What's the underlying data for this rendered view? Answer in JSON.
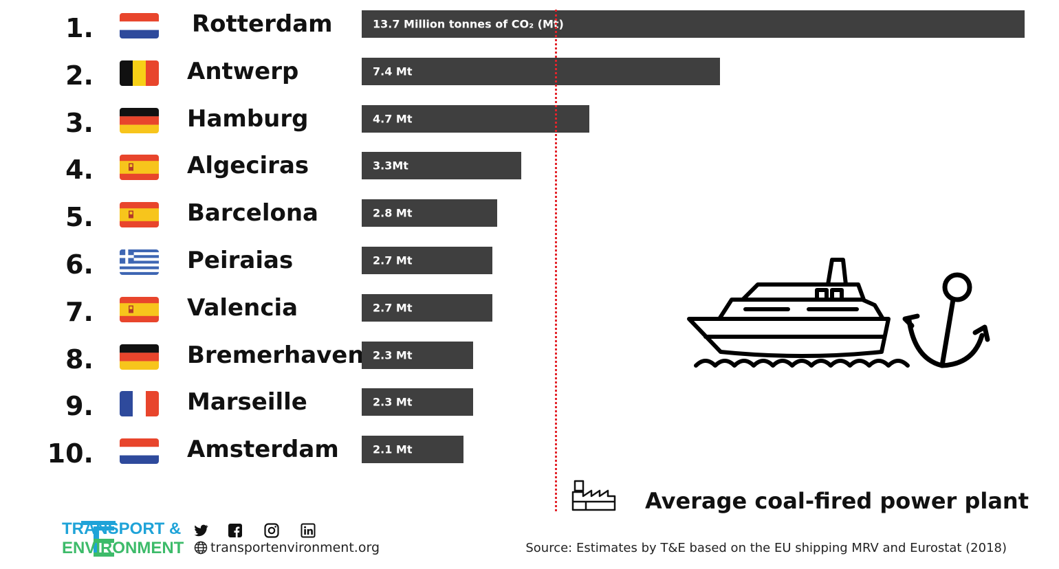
{
  "chart_data": {
    "type": "bar",
    "orientation": "horizontal",
    "unit": "Mt",
    "value_axis_range": [
      0,
      13.7
    ],
    "categories": [
      "Rotterdam",
      "Antwerp",
      "Hamburg",
      "Algeciras",
      "Barcelona",
      "Peiraias",
      "Valencia",
      "Bremerhaven",
      "Marseille",
      "Amsterdam"
    ],
    "values": [
      13.7,
      7.4,
      4.7,
      3.3,
      2.8,
      2.7,
      2.7,
      2.3,
      2.3,
      2.1
    ],
    "bar_labels": [
      "13.7 Million tonnes of CO₂ (Mt)",
      "7.4 Mt",
      "4.7 Mt",
      "3.3Mt",
      "2.8 Mt",
      "2.7 Mt",
      "2.7 Mt",
      "2.3 Mt",
      "2.3 Mt",
      "2.1 Mt"
    ],
    "ranks": [
      "1.",
      "2.",
      "3.",
      "4.",
      "5.",
      "6.",
      "7.",
      "8.",
      "9.",
      "10."
    ],
    "flags": [
      "netherlands",
      "belgium",
      "germany",
      "spain",
      "spain",
      "greece",
      "spain",
      "germany",
      "france",
      "netherlands"
    ],
    "reference_line": {
      "value": 4.0,
      "label": "Average coal-fired power plant",
      "color": "#e3242b"
    },
    "bar_color": "#3f3f3f",
    "grid": false
  },
  "icons": {
    "ship": "ship-icon",
    "anchor": "anchor-icon",
    "factory": "factory-icon",
    "globe": "globe-icon"
  },
  "footer": {
    "org_line1": "TRANSPORT &",
    "org_line2": "ENVIRONMENT",
    "website": "transportenvironment.org",
    "source": "Source: Estimates by T&E based on the EU shipping MRV and Eurostat (2018)",
    "social": [
      "twitter",
      "facebook",
      "instagram",
      "linkedin"
    ],
    "colors": {
      "blue": "#1fa3d8",
      "green": "#3dbb6a"
    }
  }
}
